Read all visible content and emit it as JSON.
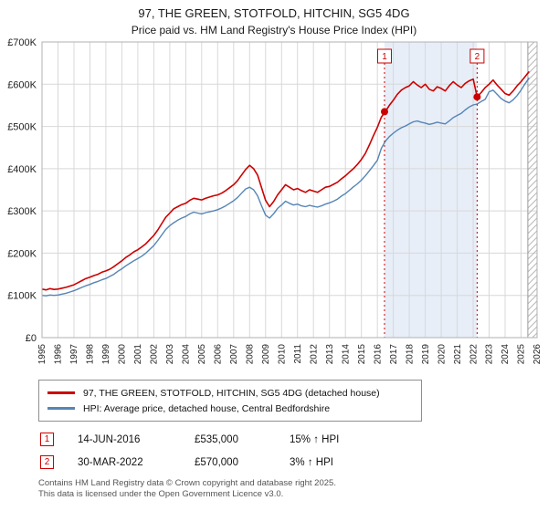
{
  "title": "97, THE GREEN, STOTFOLD, HITCHIN, SG5 4DG",
  "subtitle": "Price paid vs. HM Land Registry's House Price Index (HPI)",
  "chart_data": {
    "type": "line",
    "x_min": 1995,
    "x_max": 2026,
    "y_min": 0,
    "y_max": 700,
    "y_tick_labels": [
      "£0",
      "£100K",
      "£200K",
      "£300K",
      "£400K",
      "£500K",
      "£600K",
      "£700K"
    ],
    "x_start": 1995,
    "x_step": 0.25,
    "grid": true,
    "legend_position": "bottom",
    "band_color": "#e7eef8",
    "grid_color": "#d8d8d8",
    "accent_red": "#cc0000",
    "sale_band": [
      2016.45,
      2022.25
    ],
    "hatch_start": 2025.42,
    "series": [
      {
        "name": "97, THE GREEN, STOTFOLD, HITCHIN, SG5 4DG (detached house)",
        "color": "#cc0000",
        "values": [
          115,
          113,
          116,
          114,
          115,
          117,
          119,
          122,
          125,
          130,
          135,
          140,
          143,
          147,
          150,
          155,
          158,
          162,
          168,
          175,
          182,
          190,
          196,
          203,
          208,
          215,
          222,
          232,
          242,
          255,
          270,
          285,
          295,
          305,
          310,
          315,
          318,
          325,
          330,
          328,
          326,
          330,
          333,
          336,
          338,
          342,
          348,
          355,
          362,
          372,
          385,
          398,
          408,
          400,
          385,
          355,
          325,
          310,
          322,
          338,
          350,
          362,
          356,
          350,
          353,
          348,
          344,
          350,
          347,
          344,
          350,
          356,
          358,
          363,
          368,
          376,
          383,
          392,
          400,
          410,
          422,
          436,
          456,
          478,
          498,
          522,
          535,
          550,
          562,
          576,
          586,
          592,
          596,
          606,
          598,
          592,
          600,
          588,
          584,
          594,
          590,
          584,
          596,
          606,
          598,
          592,
          602,
          608,
          612,
          570,
          580,
          592,
          600,
          610,
          598,
          588,
          578,
          574,
          584,
          596,
          606,
          618,
          630
        ]
      },
      {
        "name": "HPI: Average price, detached house, Central Bedfordshire",
        "color": "#5585b5",
        "values": [
          100,
          99,
          101,
          100,
          101,
          103,
          105,
          108,
          111,
          115,
          119,
          123,
          126,
          130,
          133,
          137,
          140,
          145,
          150,
          157,
          163,
          170,
          176,
          182,
          187,
          193,
          200,
          209,
          218,
          230,
          243,
          256,
          265,
          272,
          278,
          283,
          287,
          293,
          297,
          295,
          293,
          296,
          298,
          300,
          303,
          307,
          312,
          318,
          324,
          332,
          342,
          352,
          356,
          350,
          336,
          312,
          290,
          283,
          293,
          306,
          314,
          323,
          318,
          314,
          316,
          312,
          310,
          313,
          311,
          309,
          312,
          316,
          319,
          323,
          328,
          335,
          341,
          349,
          357,
          364,
          373,
          383,
          395,
          407,
          420,
          448,
          465,
          476,
          484,
          491,
          497,
          501,
          506,
          511,
          513,
          510,
          508,
          505,
          507,
          510,
          508,
          506,
          513,
          521,
          526,
          531,
          539,
          546,
          551,
          553,
          559,
          564,
          582,
          586,
          576,
          566,
          560,
          556,
          563,
          573,
          586,
          601,
          615
        ]
      }
    ],
    "markers": [
      {
        "num": "1",
        "x": 2016.45,
        "y": 535
      },
      {
        "num": "2",
        "x": 2022.25,
        "y": 570
      }
    ]
  },
  "sales": [
    {
      "num": "1",
      "date": "14-JUN-2016",
      "price": "£535,000",
      "hpi": "15% ↑ HPI"
    },
    {
      "num": "2",
      "date": "30-MAR-2022",
      "price": "£570,000",
      "hpi": "3% ↑ HPI"
    }
  ],
  "footer": {
    "line1": "Contains HM Land Registry data © Crown copyright and database right 2025.",
    "line2": "This data is licensed under the Open Government Licence v3.0."
  }
}
